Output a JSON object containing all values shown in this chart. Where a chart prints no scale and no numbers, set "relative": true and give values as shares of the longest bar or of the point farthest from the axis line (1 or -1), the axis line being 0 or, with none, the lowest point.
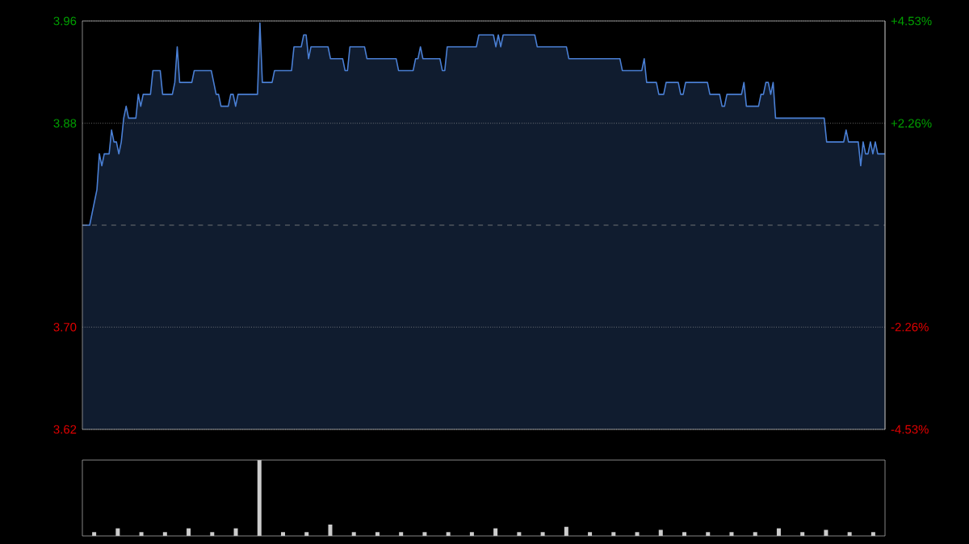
{
  "chart_data": [
    {
      "type": "line",
      "categories": [
        null,
        null,
        null,
        null,
        null,
        null,
        null,
        null,
        null,
        null,
        null,
        null,
        null,
        null,
        null,
        null,
        null,
        null,
        null,
        null,
        null,
        null,
        null,
        null,
        null,
        null,
        null,
        null,
        null,
        null,
        null,
        null,
        null,
        null,
        null,
        null,
        null,
        null,
        null,
        null,
        null,
        null,
        null,
        null,
        null,
        null,
        null,
        null,
        null,
        null,
        null,
        null,
        null,
        null,
        null,
        null,
        null,
        null,
        null,
        null,
        null,
        null,
        null,
        null,
        null,
        null,
        null,
        null,
        null,
        null,
        null,
        null,
        null,
        null,
        null,
        null,
        null,
        null,
        null,
        null,
        null,
        null,
        null,
        null,
        null,
        null,
        null,
        null,
        null,
        null,
        null,
        null,
        null,
        null,
        null,
        null,
        null,
        null,
        null,
        null,
        null,
        null,
        null,
        null,
        null,
        null,
        null,
        null,
        null,
        null,
        null,
        null,
        null,
        null,
        null,
        null,
        null,
        null,
        null,
        null,
        null,
        null,
        null,
        null,
        null,
        null,
        null,
        null,
        null,
        null,
        null,
        null,
        null,
        null,
        null,
        null,
        null,
        null,
        null,
        null,
        null,
        null,
        null,
        null,
        null,
        null,
        null,
        null,
        null,
        null,
        null,
        null,
        null,
        null,
        null,
        null,
        null,
        null,
        null,
        null,
        null,
        null,
        null,
        null,
        null,
        null,
        null,
        null,
        null,
        null,
        null,
        null,
        null,
        null,
        null,
        null,
        null,
        null,
        null,
        null,
        null,
        null,
        null,
        null,
        null,
        null,
        null,
        null,
        null,
        null,
        null,
        null,
        null,
        null,
        null,
        null,
        null,
        null,
        null,
        null,
        null,
        null,
        null,
        null,
        null,
        null,
        null,
        null,
        null,
        null,
        null,
        null,
        null,
        null,
        null,
        null,
        null,
        null,
        null,
        null,
        null,
        null,
        null,
        null,
        null,
        null,
        null,
        null,
        null,
        null,
        null,
        null,
        null,
        null,
        null,
        null,
        null,
        null,
        null,
        null,
        null,
        null,
        null,
        null,
        null,
        null,
        null,
        null,
        null,
        null,
        null,
        null,
        null,
        null,
        null,
        null,
        null,
        null,
        null,
        null,
        null,
        null,
        null,
        null,
        null,
        null,
        null,
        null,
        null,
        null,
        null,
        null,
        null,
        null,
        null,
        null,
        null,
        null,
        null,
        null,
        null,
        null,
        null,
        null,
        null,
        null,
        null,
        null,
        null,
        null,
        null,
        null,
        null,
        null,
        null,
        null,
        null,
        null,
        null,
        null,
        null,
        null,
        null,
        null,
        null,
        null,
        null,
        null,
        null,
        null,
        null,
        null,
        null,
        null,
        null,
        null,
        null,
        null,
        null,
        null,
        null,
        null,
        null,
        null,
        null,
        null,
        null,
        null,
        null,
        null,
        null
      ],
      "ylim": [
        3.6183,
        3.9617
      ],
      "yticks": [
        {
          "value": 3.6183,
          "label": "3.62"
        },
        {
          "value": 3.7043,
          "label": "3.70"
        },
        {
          "value": 3.8757,
          "label": "3.88"
        },
        {
          "value": 3.9617,
          "label": "3.96"
        }
      ],
      "y2lim": [
        -4.53,
        4.53
      ],
      "y2ticks": [
        {
          "value": -4.53,
          "label": "-4.53%"
        },
        {
          "value": -2.26,
          "label": "-2.26%"
        },
        {
          "value": 2.26,
          "label": "+2.26%"
        },
        {
          "value": 4.53,
          "label": "+4.53%"
        }
      ],
      "grid": "y",
      "tick_labels": "y",
      "ref_lines": [
        {
          "axis": "y",
          "value": 3.79,
          "color": "#888888",
          "line_style": "dashed"
        }
      ],
      "series": [
        {
          "color": "#4a7fd4",
          "values": [
            3.79,
            3.79,
            3.79,
            3.79,
            3.8,
            3.81,
            3.82,
            3.85,
            3.84,
            3.85,
            3.85,
            3.85,
            3.87,
            3.86,
            3.86,
            3.85,
            3.86,
            3.88,
            3.89,
            3.88,
            3.88,
            3.88,
            3.88,
            3.9,
            3.89,
            3.9,
            3.9,
            3.9,
            3.9,
            3.92,
            3.92,
            3.92,
            3.92,
            3.9,
            3.9,
            3.9,
            3.9,
            3.9,
            3.91,
            3.94,
            3.91,
            3.91,
            3.91,
            3.91,
            3.91,
            3.91,
            3.92,
            3.92,
            3.92,
            3.92,
            3.92,
            3.92,
            3.92,
            3.92,
            3.91,
            3.9,
            3.9,
            3.89,
            3.89,
            3.89,
            3.89,
            3.9,
            3.9,
            3.89,
            3.9,
            3.9,
            3.9,
            3.9,
            3.9,
            3.9,
            3.9,
            3.9,
            3.9,
            3.96,
            3.91,
            3.91,
            3.91,
            3.91,
            3.91,
            3.92,
            3.92,
            3.92,
            3.92,
            3.92,
            3.92,
            3.92,
            3.92,
            3.94,
            3.94,
            3.94,
            3.94,
            3.95,
            3.95,
            3.93,
            3.94,
            3.94,
            3.94,
            3.94,
            3.94,
            3.94,
            3.94,
            3.94,
            3.93,
            3.93,
            3.93,
            3.93,
            3.93,
            3.93,
            3.92,
            3.92,
            3.94,
            3.94,
            3.94,
            3.94,
            3.94,
            3.94,
            3.94,
            3.93,
            3.93,
            3.93,
            3.93,
            3.93,
            3.93,
            3.93,
            3.93,
            3.93,
            3.93,
            3.93,
            3.93,
            3.93,
            3.92,
            3.92,
            3.92,
            3.92,
            3.92,
            3.92,
            3.92,
            3.93,
            3.93,
            3.94,
            3.93,
            3.93,
            3.93,
            3.93,
            3.93,
            3.93,
            3.93,
            3.93,
            3.92,
            3.92,
            3.94,
            3.94,
            3.94,
            3.94,
            3.94,
            3.94,
            3.94,
            3.94,
            3.94,
            3.94,
            3.94,
            3.94,
            3.94,
            3.95,
            3.95,
            3.95,
            3.95,
            3.95,
            3.95,
            3.95,
            3.94,
            3.95,
            3.94,
            3.95,
            3.95,
            3.95,
            3.95,
            3.95,
            3.95,
            3.95,
            3.95,
            3.95,
            3.95,
            3.95,
            3.95,
            3.95,
            3.95,
            3.94,
            3.94,
            3.94,
            3.94,
            3.94,
            3.94,
            3.94,
            3.94,
            3.94,
            3.94,
            3.94,
            3.94,
            3.94,
            3.93,
            3.93,
            3.93,
            3.93,
            3.93,
            3.93,
            3.93,
            3.93,
            3.93,
            3.93,
            3.93,
            3.93,
            3.93,
            3.93,
            3.93,
            3.93,
            3.93,
            3.93,
            3.93,
            3.93,
            3.93,
            3.93,
            3.92,
            3.92,
            3.92,
            3.92,
            3.92,
            3.92,
            3.92,
            3.92,
            3.92,
            3.93,
            3.91,
            3.91,
            3.91,
            3.91,
            3.91,
            3.9,
            3.9,
            3.9,
            3.91,
            3.91,
            3.91,
            3.91,
            3.91,
            3.91,
            3.9,
            3.9,
            3.91,
            3.91,
            3.91,
            3.91,
            3.91,
            3.91,
            3.91,
            3.91,
            3.91,
            3.91,
            3.9,
            3.9,
            3.9,
            3.9,
            3.9,
            3.89,
            3.89,
            3.9,
            3.9,
            3.9,
            3.9,
            3.9,
            3.9,
            3.9,
            3.91,
            3.89,
            3.89,
            3.89,
            3.89,
            3.89,
            3.89,
            3.9,
            3.9,
            3.91,
            3.91,
            3.9,
            3.91,
            3.88,
            3.88,
            3.88,
            3.88,
            3.88,
            3.88,
            3.88,
            3.88,
            3.88,
            3.88,
            3.88,
            3.88,
            3.88,
            3.88,
            3.88,
            3.88,
            3.88,
            3.88,
            3.88,
            3.88,
            3.88,
            3.86,
            3.86,
            3.86,
            3.86,
            3.86,
            3.86,
            3.86,
            3.86,
            3.87,
            3.86,
            3.86,
            3.86,
            3.86,
            3.86,
            3.84,
            3.86,
            3.85,
            3.85,
            3.86,
            3.85,
            3.86,
            3.85,
            3.85,
            3.85,
            3.85
          ]
        }
      ]
    },
    {
      "type": "bar",
      "relative": true,
      "tick_labels": false,
      "categories": [
        null,
        null,
        null,
        null,
        null,
        null,
        null,
        null,
        null,
        null,
        null,
        null,
        null,
        null,
        null,
        null,
        null,
        null,
        null,
        null,
        null,
        null,
        null,
        null,
        null,
        null,
        null,
        null,
        null,
        null,
        null,
        null,
        null,
        null
      ],
      "series": [
        {
          "color": "#cccccc",
          "values": [
            0.05,
            0.1,
            0.05,
            0.05,
            0.1,
            0.05,
            0.1,
            1,
            0.05,
            0.05,
            0.15,
            0.05,
            0.05,
            0.05,
            0.05,
            0.05,
            0.05,
            0.1,
            0.05,
            0.05,
            0.12,
            0.05,
            0.05,
            0.05,
            0.08,
            0.05,
            0.05,
            0.05,
            0.05,
            0.1,
            0.05,
            0.08,
            0.05,
            0.05
          ]
        }
      ]
    }
  ]
}
